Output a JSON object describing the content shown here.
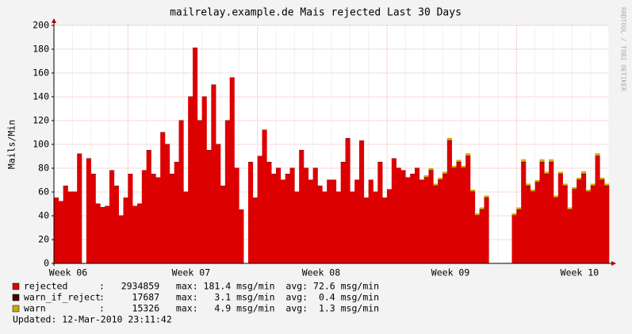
{
  "chart_data": {
    "type": "stacked_bar",
    "title": "mailrelay.example.de Mais rejected Last 30 Days",
    "ylabel": "Mails/Min",
    "watermark": "RRDTOOL / TOBI OETIKER",
    "updated": "Updated: 12-Mar-2010 23:11:42",
    "xlim": [
      0,
      30
    ],
    "ylim": [
      0,
      200
    ],
    "yticks": [
      0,
      20,
      40,
      60,
      80,
      100,
      120,
      140,
      160,
      180,
      200
    ],
    "xticks": [
      {
        "value": 0.43,
        "label": "Week 06"
      },
      {
        "value": 7.41,
        "label": "Week 07"
      },
      {
        "value": 14.44,
        "label": "Week 08"
      },
      {
        "value": 21.43,
        "label": "Week 09"
      },
      {
        "value": 28.41,
        "label": "Week 10"
      }
    ],
    "xgrid": [
      4,
      11,
      18,
      25
    ],
    "grid": true,
    "x": [
      0,
      0.25,
      0.5,
      0.75,
      1,
      1.25,
      1.5,
      1.75,
      2,
      2.25,
      2.5,
      2.75,
      3,
      3.25,
      3.5,
      3.75,
      4,
      4.25,
      4.5,
      4.75,
      5,
      5.25,
      5.5,
      5.75,
      6,
      6.25,
      6.5,
      6.75,
      7,
      7.25,
      7.5,
      7.75,
      8,
      8.25,
      8.5,
      8.75,
      9,
      9.25,
      9.5,
      9.75,
      10,
      10.25,
      10.5,
      10.75,
      11,
      11.25,
      11.5,
      11.75,
      12,
      12.25,
      12.5,
      12.75,
      13,
      13.25,
      13.5,
      13.75,
      14,
      14.25,
      14.5,
      14.75,
      15,
      15.25,
      15.5,
      15.75,
      16,
      16.25,
      16.5,
      16.75,
      17,
      17.25,
      17.5,
      17.75,
      18,
      18.25,
      18.5,
      18.75,
      19,
      19.25,
      19.5,
      19.75,
      20,
      20.25,
      20.5,
      20.75,
      21,
      21.25,
      21.5,
      21.75,
      22,
      22.25,
      22.5,
      22.75,
      23,
      23.25,
      23.5,
      23.75,
      24,
      24.25,
      24.5,
      24.75,
      25,
      25.25,
      25.5,
      25.75,
      26,
      26.25,
      26.5,
      26.75,
      27,
      27.25,
      27.5,
      27.75,
      28,
      28.25,
      28.5,
      28.75,
      29,
      29.25,
      29.5,
      29.75
    ],
    "series": [
      {
        "name": "rejected",
        "color": "#dd0000",
        "stats": ":   2934859   max: 181.4 msg/min  avg: 72.6 msg/min",
        "values": [
          55,
          52,
          65,
          60,
          60,
          92,
          null,
          88,
          75,
          50,
          47,
          48,
          78,
          65,
          40,
          55,
          75,
          48,
          50,
          78,
          95,
          75,
          72,
          110,
          100,
          75,
          85,
          120,
          60,
          140,
          181,
          120,
          140,
          95,
          150,
          100,
          65,
          120,
          156,
          80,
          45,
          null,
          85,
          55,
          90,
          112,
          85,
          75,
          80,
          70,
          75,
          80,
          60,
          95,
          80,
          70,
          80,
          65,
          60,
          70,
          70,
          60,
          85,
          105,
          60,
          70,
          103,
          55,
          70,
          60,
          85,
          55,
          62,
          88,
          80,
          78,
          72,
          75,
          80,
          70,
          72,
          78,
          65,
          70,
          75,
          103,
          80,
          85,
          80,
          90,
          60,
          40,
          45,
          55,
          null,
          null,
          null,
          null,
          null,
          40,
          45,
          85,
          65,
          60,
          68,
          85,
          75,
          85,
          55,
          75,
          65,
          45,
          62,
          70,
          75,
          60,
          65,
          90,
          70,
          65
        ]
      },
      {
        "name": "warn_if_reject",
        "color": "#440000",
        "stats": ":     17687   max:   3.1 msg/min  avg:  0.4 msg/min",
        "values": [
          0.3,
          0.3,
          0.3,
          0.3,
          0.3,
          0.3,
          null,
          0.3,
          0.3,
          0.3,
          0.3,
          0.3,
          0.3,
          0.3,
          0.3,
          0.3,
          0.3,
          0.3,
          0.3,
          0.3,
          0.3,
          0.3,
          0.3,
          0.3,
          0.3,
          0.3,
          0.3,
          0.3,
          0.3,
          0.3,
          0.3,
          0.3,
          0.3,
          0.3,
          0.3,
          0.3,
          0.3,
          0.3,
          0.3,
          0.3,
          0.3,
          null,
          0.3,
          0.3,
          0.3,
          0.3,
          0.3,
          0.3,
          0.3,
          0.3,
          0.3,
          0.3,
          0.3,
          0.3,
          0.3,
          0.3,
          0.3,
          0.3,
          0.3,
          0.3,
          0.3,
          0.3,
          0.3,
          0.3,
          0.3,
          0.3,
          0.3,
          0.3,
          0.3,
          0.3,
          0.3,
          0.3,
          0.3,
          0.3,
          0.3,
          0.3,
          0.3,
          0.3,
          0.3,
          0.3,
          0.5,
          0.5,
          0.5,
          0.5,
          0.5,
          0.5,
          0.5,
          0.5,
          0.5,
          0.5,
          0.5,
          0.5,
          0.5,
          0.5,
          null,
          null,
          null,
          null,
          null,
          0.5,
          0.5,
          0.5,
          0.5,
          0.5,
          0.5,
          0.5,
          0.5,
          0.5,
          0.5,
          0.5,
          0.5,
          0.5,
          0.5,
          0.5,
          0.5,
          0.5,
          0.5,
          0.5,
          0.5,
          0.5
        ]
      },
      {
        "name": "warn",
        "color": "#ccaa00",
        "stats": ":     15326   max:   4.9 msg/min  avg:  1.3 msg/min",
        "values": [
          0,
          0,
          0,
          0,
          0,
          0,
          null,
          0,
          0,
          0,
          0,
          0,
          0,
          0,
          0,
          0,
          0,
          0,
          0,
          0,
          0,
          0,
          0,
          0,
          0,
          0,
          0,
          0,
          0,
          0,
          0,
          0,
          0,
          0,
          0,
          0,
          0,
          0,
          0,
          0,
          0,
          null,
          0,
          0,
          0,
          0,
          0,
          0,
          0,
          0,
          0,
          0,
          0,
          0,
          0,
          0,
          0,
          0,
          0,
          0,
          0,
          0,
          0,
          0,
          0,
          0,
          0,
          0,
          0,
          0,
          0,
          0,
          0,
          0,
          0,
          0,
          0,
          0,
          0,
          0,
          1.5,
          1.5,
          1.5,
          1.5,
          1.5,
          2,
          1.5,
          1.5,
          1.5,
          2,
          1.5,
          1.5,
          1.5,
          1.5,
          null,
          null,
          null,
          null,
          null,
          1.5,
          1.5,
          2,
          1.5,
          1.5,
          1.5,
          2,
          1.5,
          2,
          1.5,
          1.5,
          1.5,
          1.5,
          1.5,
          1.5,
          2,
          1.5,
          1.5,
          2,
          1.5,
          1.5
        ]
      }
    ]
  }
}
